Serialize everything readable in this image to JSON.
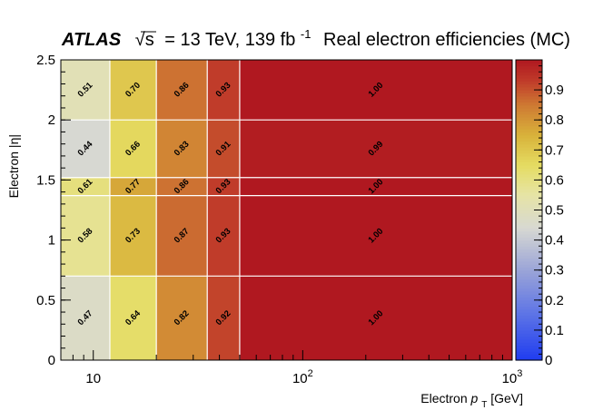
{
  "chart_data": {
    "type": "heatmap",
    "experiment": "ATLAS",
    "title": "Real electron efficiencies (MC)",
    "energy_text": "= 13 TeV, 139 fb",
    "energy_superscript": "-1",
    "sqrt_symbol": "√s",
    "xlabel": {
      "prefix": "Electron ",
      "var": "p",
      "sub": "T",
      "unit": " [GeV]"
    },
    "ylabel": "Electron |η|",
    "x_scale": "log",
    "xlim": [
      7,
      1000
    ],
    "ylim": [
      0,
      2.5
    ],
    "x_bins": [
      7,
      12,
      20,
      35,
      50,
      1000
    ],
    "y_bins": [
      0,
      0.7,
      1.37,
      1.52,
      2.0,
      2.5
    ],
    "values": [
      [
        0.47,
        0.64,
        0.82,
        0.92,
        1.0
      ],
      [
        0.58,
        0.73,
        0.87,
        0.93,
        1.0
      ],
      [
        0.61,
        0.77,
        0.86,
        0.93,
        1.0
      ],
      [
        0.44,
        0.66,
        0.83,
        0.91,
        0.99
      ],
      [
        0.51,
        0.7,
        0.86,
        0.93,
        1.0
      ]
    ],
    "cell_labels": [
      [
        "0.47",
        "0.64",
        "0.82",
        "0.92",
        "1.00"
      ],
      [
        "0.58",
        "0.73",
        "0.87",
        "0.93",
        "1.00"
      ],
      [
        "0.61",
        "0.77",
        "0.86",
        "0.93",
        "1.00"
      ],
      [
        "0.44",
        "0.66",
        "0.83",
        "0.91",
        "0.99"
      ],
      [
        "0.51",
        "0.70",
        "0.86",
        "0.93",
        "1.00"
      ]
    ],
    "y_ticks": [
      {
        "value": 0,
        "label": "0"
      },
      {
        "value": 0.5,
        "label": "0.5"
      },
      {
        "value": 1,
        "label": "1"
      },
      {
        "value": 1.5,
        "label": "1.5"
      },
      {
        "value": 2,
        "label": "2"
      },
      {
        "value": 2.5,
        "label": "2.5"
      }
    ],
    "x_ticks": [
      {
        "value": 10,
        "label": "10",
        "sup": ""
      },
      {
        "value": 100,
        "label": "10",
        "sup": "2"
      },
      {
        "value": 1000,
        "label": "10",
        "sup": "3"
      }
    ],
    "colorbar": {
      "range": [
        0,
        1
      ],
      "ticks": [
        {
          "value": 0,
          "label": "0"
        },
        {
          "value": 0.1,
          "label": "0.1"
        },
        {
          "value": 0.2,
          "label": "0.2"
        },
        {
          "value": 0.3,
          "label": "0.3"
        },
        {
          "value": 0.4,
          "label": "0.4"
        },
        {
          "value": 0.5,
          "label": "0.5"
        },
        {
          "value": 0.6,
          "label": "0.6"
        },
        {
          "value": 0.7,
          "label": "0.7"
        },
        {
          "value": 0.8,
          "label": "0.8"
        },
        {
          "value": 0.9,
          "label": "0.9"
        }
      ],
      "stops": [
        {
          "v": 0.0,
          "color": "#1f3cf0"
        },
        {
          "v": 0.15,
          "color": "#5b72e6"
        },
        {
          "v": 0.3,
          "color": "#9aa4d8"
        },
        {
          "v": 0.44,
          "color": "#d7d8d2"
        },
        {
          "v": 0.55,
          "color": "#e6e4a6"
        },
        {
          "v": 0.65,
          "color": "#e5dc62"
        },
        {
          "v": 0.75,
          "color": "#d8b23a"
        },
        {
          "v": 0.85,
          "color": "#cf7a33"
        },
        {
          "v": 0.93,
          "color": "#c03c2a"
        },
        {
          "v": 1.0,
          "color": "#b01820"
        }
      ]
    }
  }
}
